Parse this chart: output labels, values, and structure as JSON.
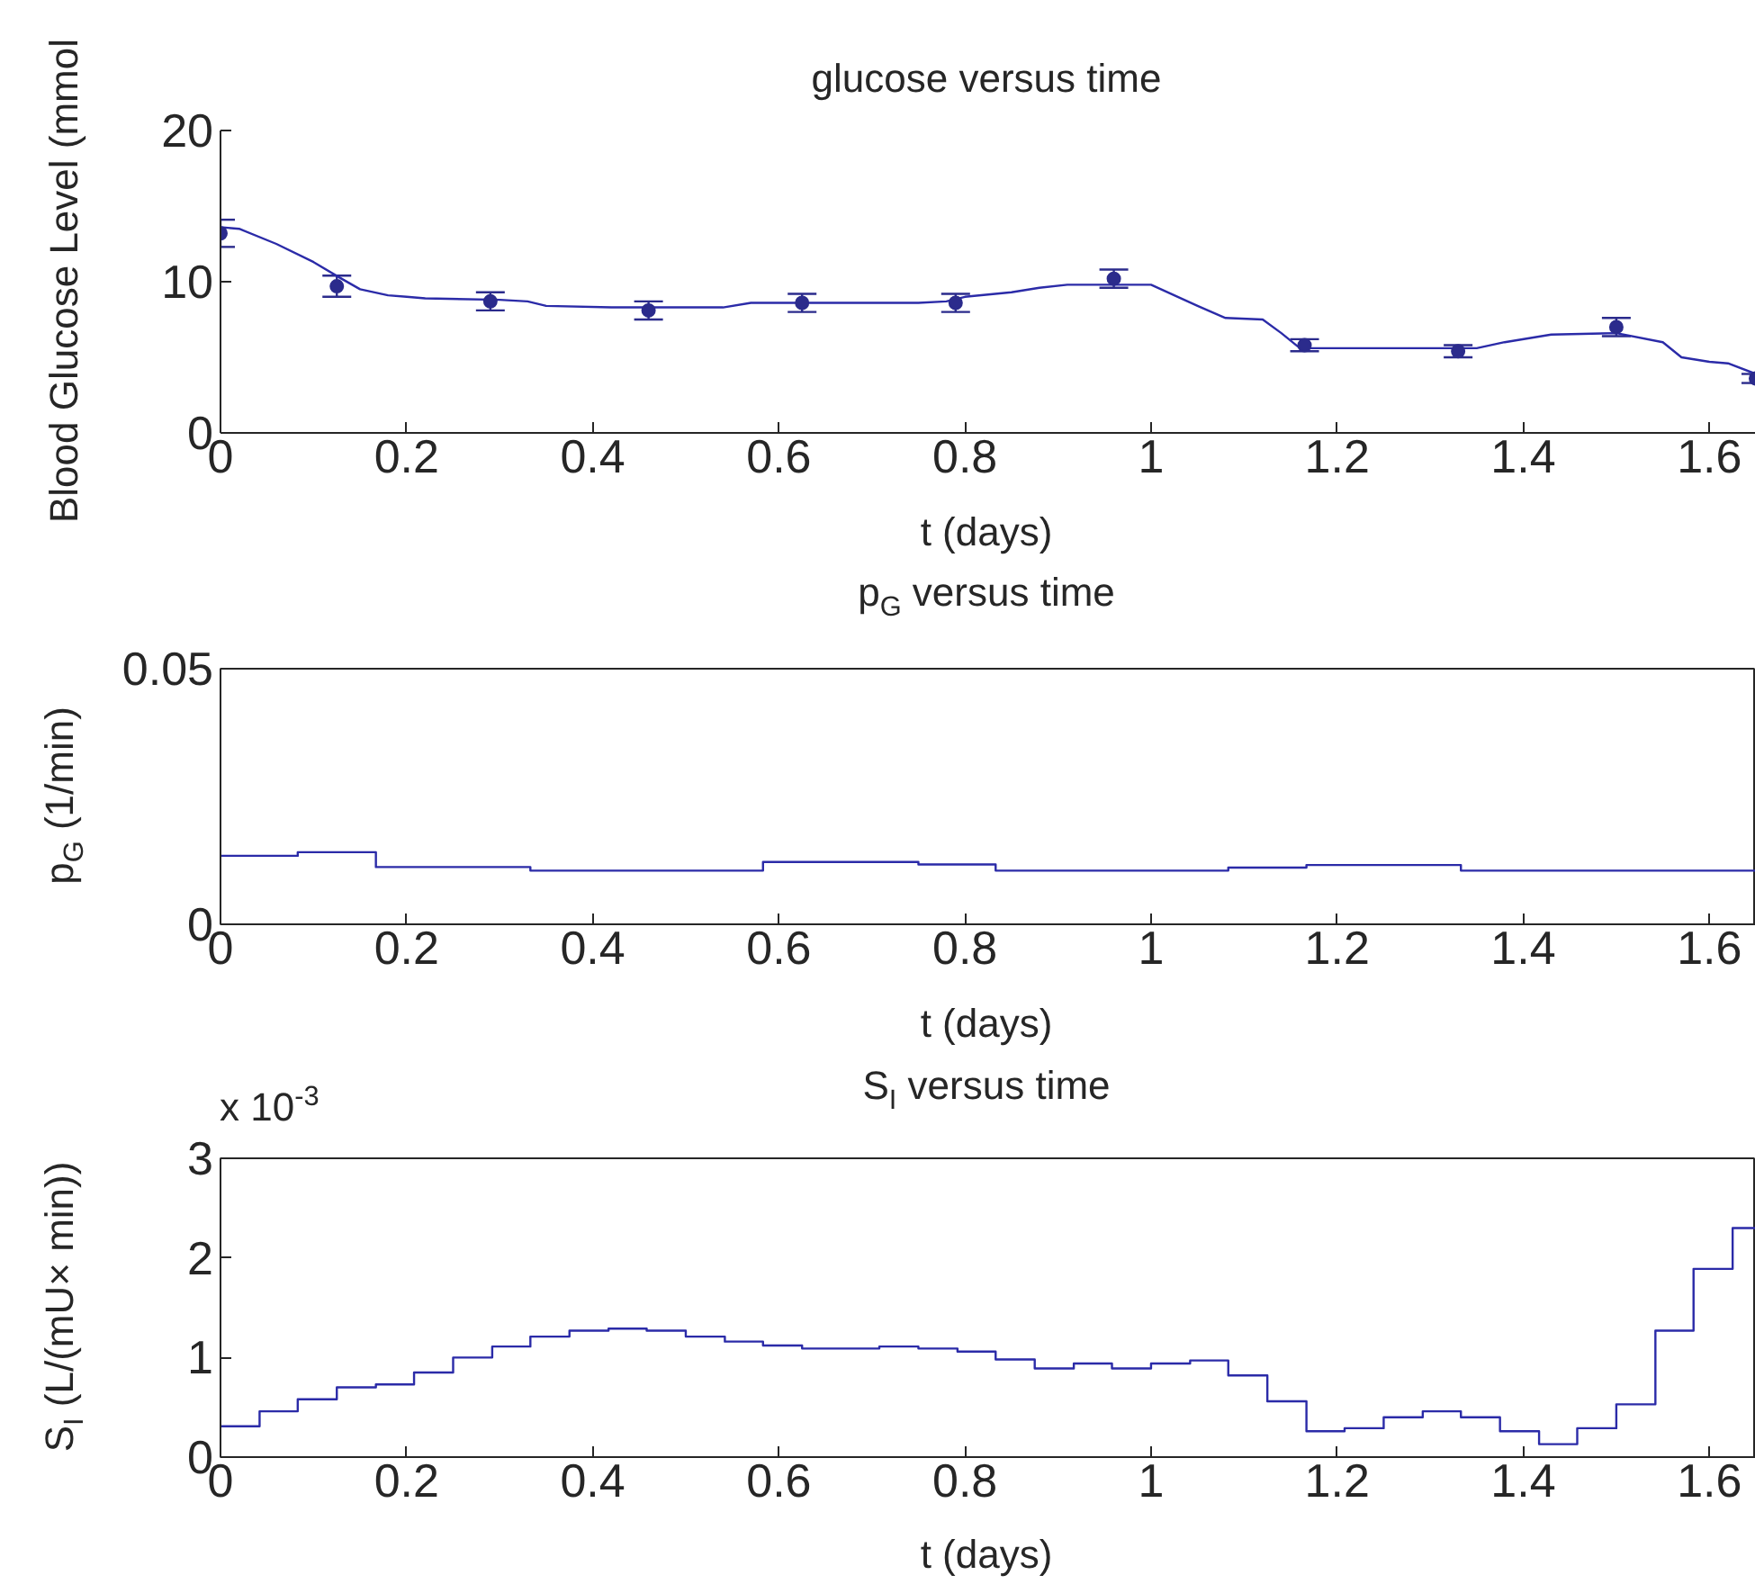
{
  "chart_data": [
    {
      "type": "line",
      "title": "glucose versus time",
      "xlabel": "t (days)",
      "ylabel": "Blood Glucose Level (mmol",
      "xlim": [
        0,
        1.65
      ],
      "xticks": [
        0,
        0.2,
        0.4,
        0.6,
        0.8,
        1,
        1.2,
        1.4,
        1.6
      ],
      "ylim": [
        0,
        20
      ],
      "yticks": [
        0,
        10,
        20
      ],
      "grid": false,
      "series": [
        {
          "color": "#2b2ba8",
          "x": [
            0,
            0.02,
            0.06,
            0.1,
            0.13,
            0.15,
            0.18,
            0.2,
            0.22,
            0.3,
            0.33,
            0.35,
            0.42,
            0.54,
            0.57,
            0.75,
            0.78,
            0.8,
            0.85,
            0.88,
            0.91,
            1.0,
            1.05,
            1.08,
            1.12,
            1.14,
            1.16,
            1.35,
            1.38,
            1.43,
            1.5,
            1.55,
            1.57,
            1.6,
            1.62,
            1.65
          ],
          "values": [
            13.6,
            13.5,
            12.5,
            11.3,
            10.2,
            9.5,
            9.1,
            9.0,
            8.9,
            8.8,
            8.7,
            8.4,
            8.3,
            8.3,
            8.6,
            8.6,
            8.7,
            9.0,
            9.3,
            9.6,
            9.8,
            9.8,
            8.4,
            7.6,
            7.5,
            6.6,
            5.6,
            5.6,
            6.0,
            6.5,
            6.6,
            6.0,
            5.0,
            4.7,
            4.6,
            3.9
          ]
        },
        {
          "type": "scatter",
          "marker": "circle",
          "color": "#2b2b8c",
          "x": [
            0,
            0.125,
            0.29,
            0.46,
            0.625,
            0.79,
            0.96,
            1.165,
            1.33,
            1.5,
            1.65
          ],
          "values": [
            13.2,
            9.7,
            8.7,
            8.1,
            8.6,
            8.6,
            10.2,
            5.8,
            5.4,
            7.0,
            3.6
          ],
          "errors": [
            0.9,
            0.7,
            0.6,
            0.6,
            0.6,
            0.6,
            0.6,
            0.4,
            0.4,
            0.6,
            0.3
          ]
        }
      ]
    },
    {
      "type": "step",
      "title": "p$_{G}$ versus time",
      "xlabel": "t (days)",
      "ylabel": "p$_{G}$ (1/min)",
      "xlim": [
        0,
        1.65
      ],
      "xticks": [
        0,
        0.2,
        0.4,
        0.6,
        0.8,
        1,
        1.2,
        1.4,
        1.6
      ],
      "ylim": [
        0,
        0.05
      ],
      "yticks": [
        0,
        0.05
      ],
      "grid": false,
      "series": [
        {
          "color": "#2b2ba8",
          "x": [
            0,
            0.083,
            0.167,
            0.333,
            0.583,
            0.75,
            0.833,
            1.083,
            1.167,
            1.333,
            1.65
          ],
          "values": [
            0.0134,
            0.0141,
            0.0112,
            0.0105,
            0.0122,
            0.0117,
            0.0105,
            0.0111,
            0.0116,
            0.0105,
            0.0105
          ]
        }
      ]
    },
    {
      "type": "step",
      "title": "S$_{I}$ versus time",
      "xlabel": "t (days)",
      "ylabel": "S$_{I}$ (L/(mU× min))",
      "annotations": [
        "x 10$^{-3}$"
      ],
      "xlim": [
        0,
        1.65
      ],
      "xticks": [
        0,
        0.2,
        0.4,
        0.6,
        0.8,
        1,
        1.2,
        1.4,
        1.6
      ],
      "ylim": [
        0,
        3
      ],
      "yticks": [
        0,
        1,
        2,
        3
      ],
      "grid": false,
      "series": [
        {
          "color": "#2b2ba8",
          "x": [
            0,
            0.042,
            0.083,
            0.125,
            0.167,
            0.208,
            0.25,
            0.292,
            0.333,
            0.375,
            0.417,
            0.458,
            0.5,
            0.542,
            0.583,
            0.625,
            0.667,
            0.708,
            0.75,
            0.792,
            0.833,
            0.875,
            0.917,
            0.958,
            1.0,
            1.042,
            1.083,
            1.125,
            1.167,
            1.208,
            1.25,
            1.292,
            1.333,
            1.375,
            1.417,
            1.458,
            1.5,
            1.542,
            1.583,
            1.625,
            1.65
          ],
          "values": [
            0.31,
            0.46,
            0.58,
            0.7,
            0.73,
            0.85,
            1.0,
            1.11,
            1.21,
            1.27,
            1.29,
            1.27,
            1.21,
            1.16,
            1.12,
            1.09,
            1.09,
            1.11,
            1.09,
            1.06,
            0.98,
            0.89,
            0.94,
            0.89,
            0.94,
            0.97,
            0.82,
            0.56,
            0.26,
            0.29,
            0.4,
            0.46,
            0.4,
            0.26,
            0.13,
            0.29,
            0.53,
            1.27,
            1.89,
            2.3,
            2.3
          ]
        }
      ]
    }
  ]
}
